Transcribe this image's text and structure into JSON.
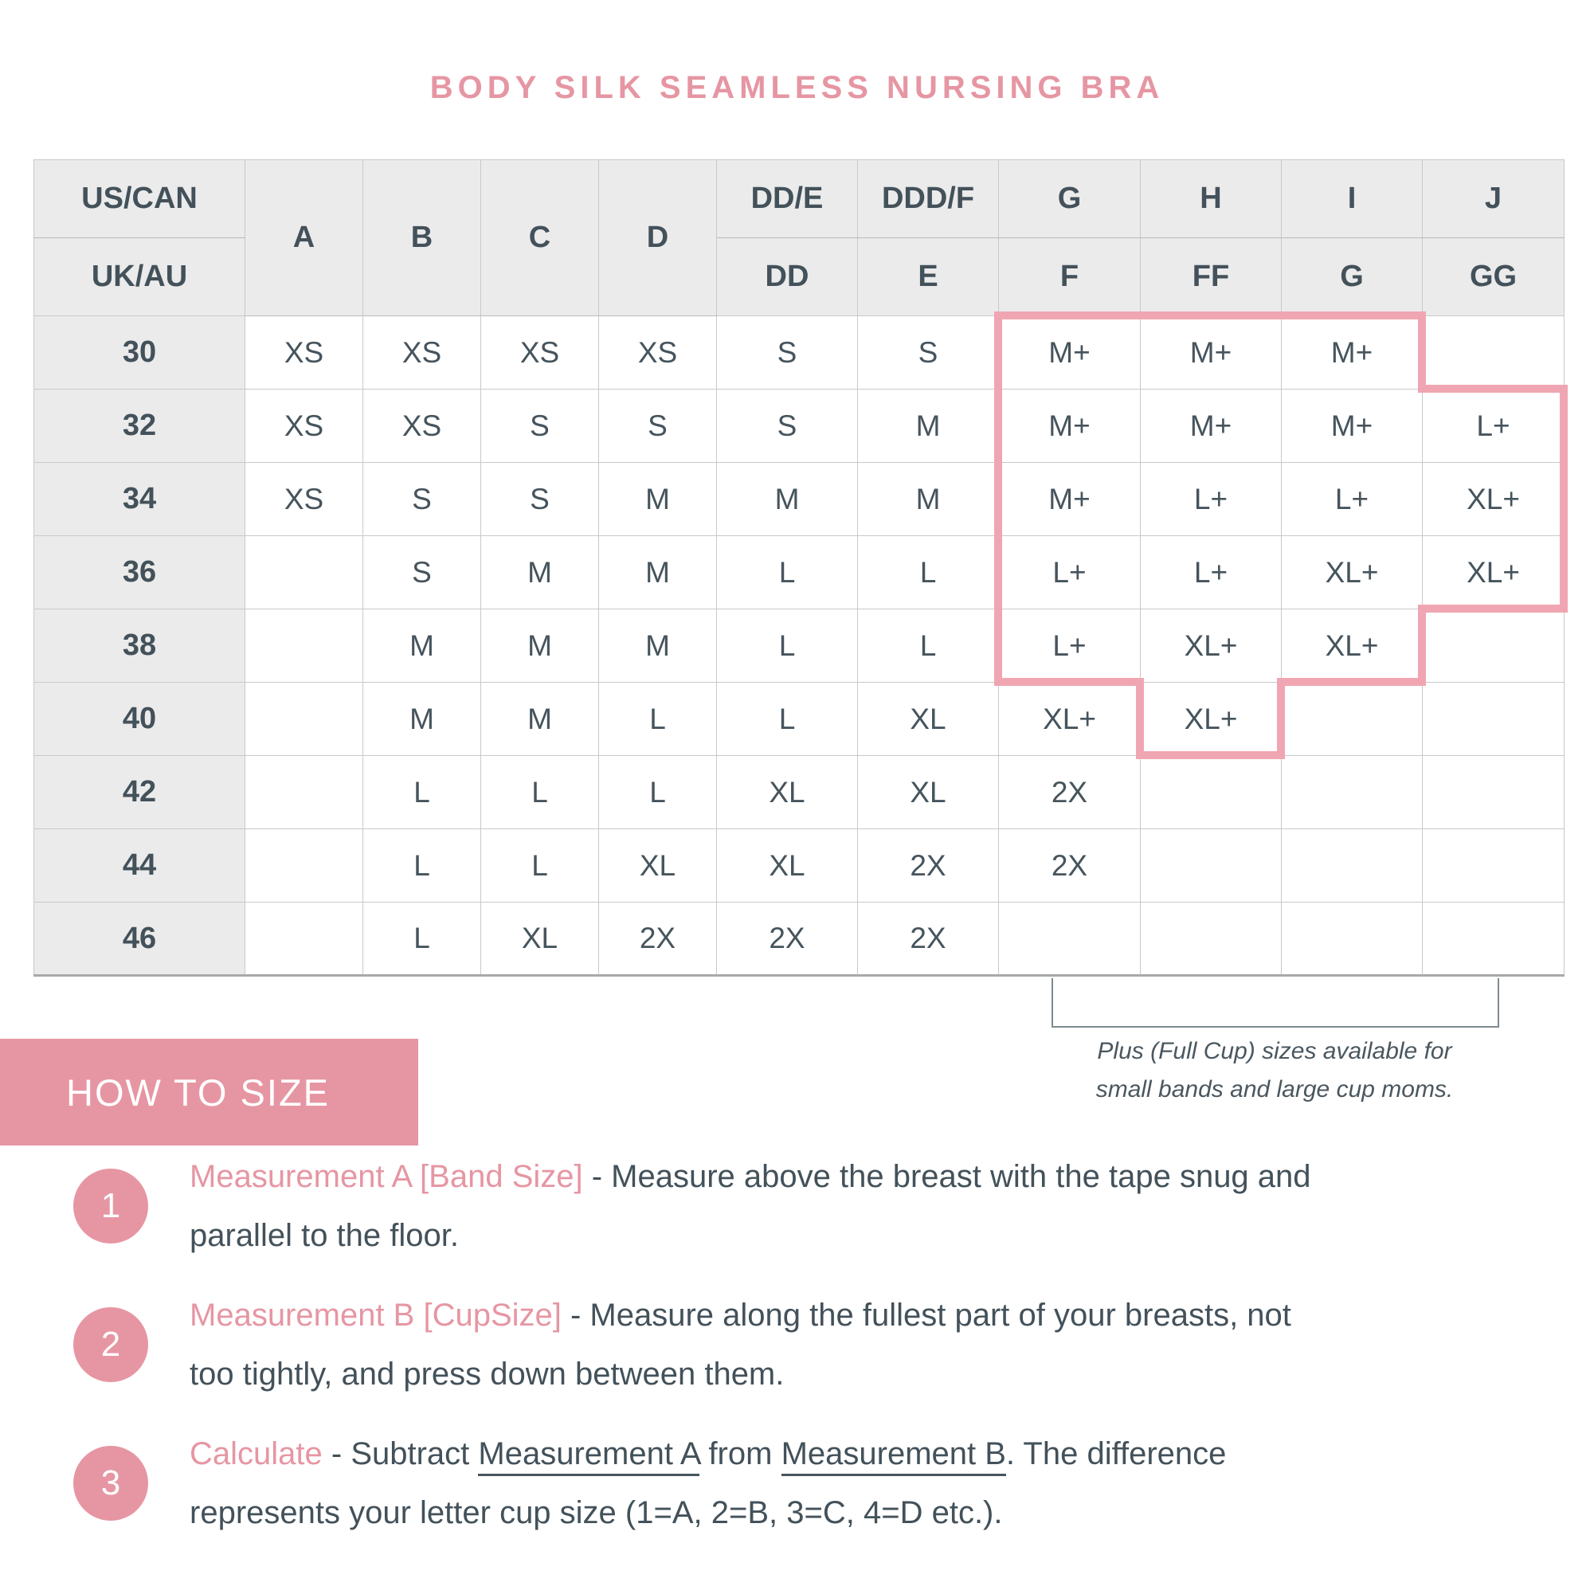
{
  "title": "BODY SILK SEAMLESS NURSING BRA",
  "colors": {
    "pink": "#e696a3",
    "pink_light": "#f0a6b2",
    "text_dark": "#43515a",
    "header_bg": "#ebebeb",
    "grid": "#c9c9c9",
    "note_gray": "#4a575f"
  },
  "chart_data": {
    "type": "table",
    "title": "Body Silk Seamless Nursing Bra size chart",
    "row_header": "band size (US/CAN = UK/AU)",
    "columns_us_can": [
      "A",
      "B",
      "C",
      "D",
      "DD/E",
      "DDD/F",
      "G",
      "H",
      "I",
      "J"
    ],
    "columns_uk_au": [
      "A",
      "B",
      "C",
      "D",
      "DD",
      "E",
      "F",
      "FF",
      "G",
      "GG"
    ],
    "bands": [
      "30",
      "32",
      "34",
      "36",
      "38",
      "40",
      "42",
      "44",
      "46"
    ],
    "cells": [
      [
        "XS",
        "XS",
        "XS",
        "XS",
        "S",
        "S",
        "M+",
        "M+",
        "M+",
        ""
      ],
      [
        "XS",
        "XS",
        "S",
        "S",
        "S",
        "M",
        "M+",
        "M+",
        "M+",
        "L+"
      ],
      [
        "XS",
        "S",
        "S",
        "M",
        "M",
        "M",
        "M+",
        "L+",
        "L+",
        "XL+"
      ],
      [
        "",
        "S",
        "M",
        "M",
        "L",
        "L",
        "L+",
        "L+",
        "XL+",
        "XL+"
      ],
      [
        "",
        "M",
        "M",
        "M",
        "L",
        "L",
        "L+",
        "XL+",
        "XL+",
        ""
      ],
      [
        "",
        "M",
        "M",
        "L",
        "L",
        "XL",
        "XL+",
        "XL+",
        "",
        ""
      ],
      [
        "",
        "L",
        "L",
        "L",
        "XL",
        "XL",
        "2X",
        "",
        "",
        ""
      ],
      [
        "",
        "L",
        "L",
        "XL",
        "XL",
        "2X",
        "2X",
        "",
        "",
        ""
      ],
      [
        "",
        "L",
        "XL",
        "2X",
        "2X",
        "2X",
        "",
        "",
        "",
        ""
      ]
    ],
    "highlighted_region_note": "pink outline marks plus (full cup) sizes M+/L+/XL+"
  },
  "table": {
    "corner": {
      "us_label": "US/CAN",
      "uk_label": "UK/AU"
    },
    "columns": [
      {
        "us": "A",
        "uk": ""
      },
      {
        "us": "B",
        "uk": ""
      },
      {
        "us": "C",
        "uk": ""
      },
      {
        "us": "D",
        "uk": ""
      },
      {
        "us": "DD/E",
        "uk": "DD"
      },
      {
        "us": "DDD/F",
        "uk": "E"
      },
      {
        "us": "G",
        "uk": "F"
      },
      {
        "us": "H",
        "uk": "FF"
      },
      {
        "us": "I",
        "uk": "G"
      },
      {
        "us": "J",
        "uk": "GG"
      }
    ],
    "rows": [
      {
        "band": "30",
        "cells": [
          "XS",
          "XS",
          "XS",
          "XS",
          "S",
          "S",
          "M+",
          "M+",
          "M+",
          ""
        ]
      },
      {
        "band": "32",
        "cells": [
          "XS",
          "XS",
          "S",
          "S",
          "S",
          "M",
          "M+",
          "M+",
          "M+",
          "L+"
        ]
      },
      {
        "band": "34",
        "cells": [
          "XS",
          "S",
          "S",
          "M",
          "M",
          "M",
          "M+",
          "L+",
          "L+",
          "XL+"
        ]
      },
      {
        "band": "36",
        "cells": [
          "",
          "S",
          "M",
          "M",
          "L",
          "L",
          "L+",
          "L+",
          "XL+",
          "XL+"
        ]
      },
      {
        "band": "38",
        "cells": [
          "",
          "M",
          "M",
          "M",
          "L",
          "L",
          "L+",
          "XL+",
          "XL+",
          ""
        ]
      },
      {
        "band": "40",
        "cells": [
          "",
          "M",
          "M",
          "L",
          "L",
          "XL",
          "XL+",
          "XL+",
          "",
          ""
        ]
      },
      {
        "band": "42",
        "cells": [
          "",
          "L",
          "L",
          "L",
          "XL",
          "XL",
          "2X",
          "",
          "",
          ""
        ]
      },
      {
        "band": "44",
        "cells": [
          "",
          "L",
          "L",
          "XL",
          "XL",
          "2X",
          "2X",
          "",
          "",
          ""
        ]
      },
      {
        "band": "46",
        "cells": [
          "",
          "L",
          "XL",
          "2X",
          "2X",
          "2X",
          "",
          "",
          "",
          ""
        ]
      }
    ]
  },
  "plus_note": {
    "line1": "Plus (Full Cup) sizes available for",
    "line2": "small bands and large cup moms."
  },
  "how_to_size": {
    "heading": "HOW TO SIZE",
    "steps": [
      {
        "num": "1",
        "label": "Measurement A [Band Size]",
        "line1": " - Measure above the breast with the tape snug and",
        "line2": "parallel to the floor."
      },
      {
        "num": "2",
        "label": "Measurement B [CupSize]",
        "line1": " - Measure along the fullest part of your breasts, not",
        "line2": "too tightly, and press down between them."
      },
      {
        "num": "3",
        "label": "Calculate",
        "line1_prefix": " - Subtract ",
        "underline1": "Measurement A",
        "line1_mid": " from ",
        "underline2": "Measurement B",
        "line1_suffix": ". The difference",
        "line2": "represents your letter cup size (1=A, 2=B, 3=C, 4=D etc.)."
      }
    ]
  }
}
